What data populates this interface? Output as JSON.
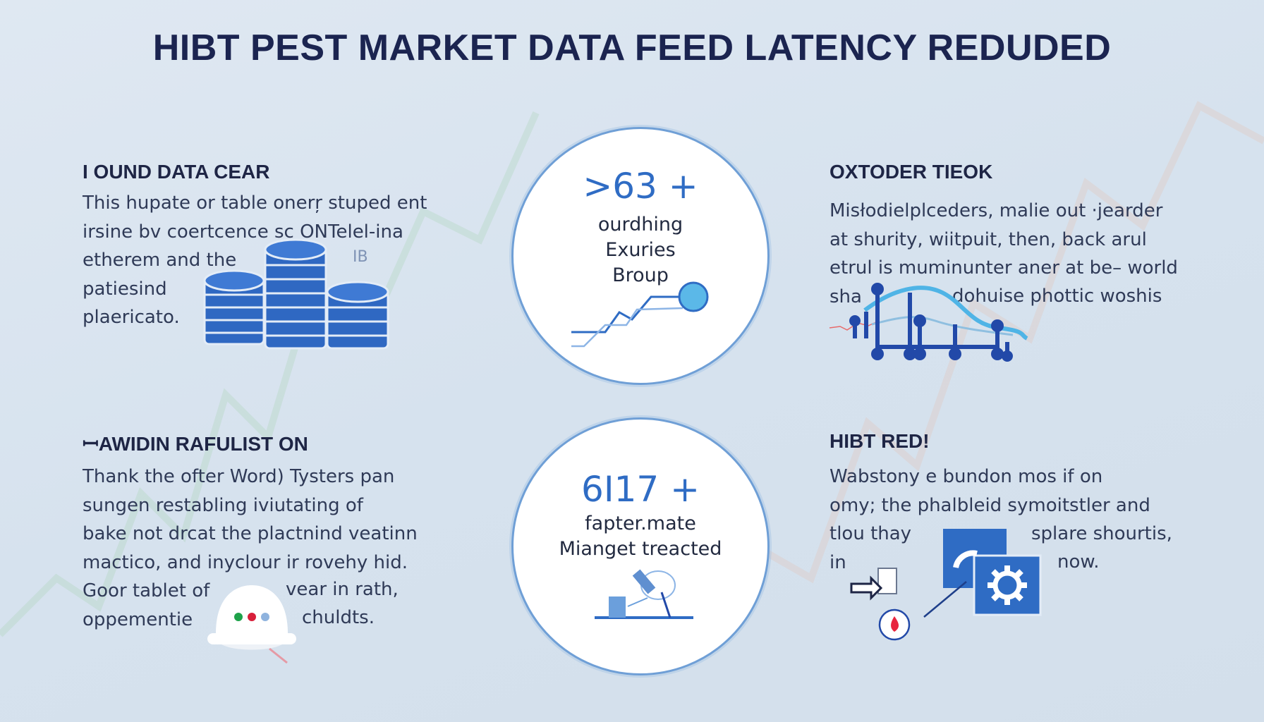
{
  "title": "HIBT PEST MARKET DATA FEED LATENCY REDUDED",
  "sections": [
    {
      "heading": "I OUND DATA CEAR",
      "lines": [
        "This hupate or table onerŗ stuped ent",
        "irsine bv coertcence sc ONTelel-ina",
        "etherem and the",
        "patiesind",
        "plaericato."
      ],
      "icon": "coin-stack-icon",
      "icon_label": "ⅠB"
    },
    {
      "heading": "OXTODER TIEOK",
      "lines": [
        "Misłodielplceders, malie out ·jearder",
        "at shurity, wiitpuit, then, back arul",
        "etrul is muminunter  aner at be– world",
        "sha",
        "dohuise phottic woshis"
      ],
      "icon": "line-chart-icon"
    },
    {
      "heading": "ꟷAWIDIN RAFULIST ON",
      "lines": [
        "Thank the ofter Word) Tysters pan",
        "sungen restabling iviutating of",
        "bake not drcat the plactnind veatinn",
        "mactico, and inyclour ir rovehy hid.",
        "Goor tablet of",
        "vear in rath,",
        "oppementie",
        "chuldts."
      ],
      "icon": "helmet-icon"
    },
    {
      "heading": "HIBT RED!",
      "lines": [
        "Wabstony e bundon mos if on",
        "omy; the phalbleid symoitstler and",
        "tlou thay",
        "splare shourtis,",
        "in",
        "now."
      ],
      "icon": "gear-settings-icon"
    }
  ],
  "stats": [
    {
      "value": ">63 +",
      "lines": [
        "ourdhing",
        "Exuries",
        "Broup"
      ],
      "icon": "trend-line-icon"
    },
    {
      "value": "6I17 +",
      "lines": [
        "fapter.mate",
        "Mianget treacted"
      ],
      "icon": "telescope-icon"
    }
  ],
  "colors": {
    "accent": "#2f6cc4",
    "title": "#1b2450",
    "light_accent": "#5bb8e8",
    "background": "#d9e4ef"
  }
}
